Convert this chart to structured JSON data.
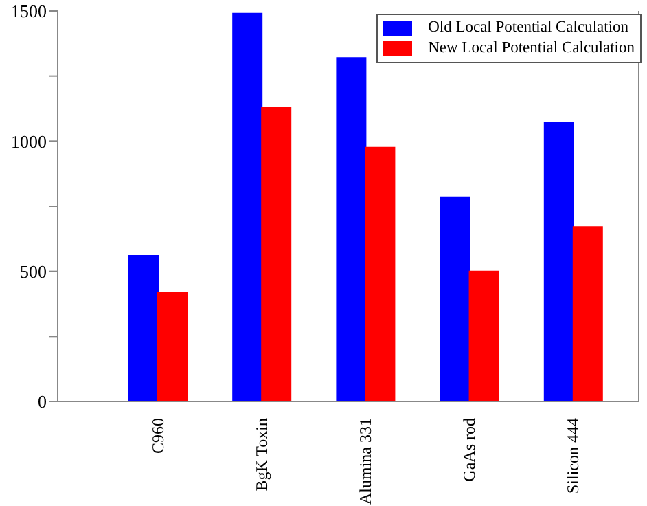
{
  "chart_data": {
    "type": "bar",
    "categories": [
      "C960",
      "BgK Toxin",
      "Alumina 331",
      "GaAs rod",
      "Silicon 444"
    ],
    "series": [
      {
        "name": "Old Local Potential Calculation",
        "color": "#0000ff",
        "values": [
          560,
          1490,
          1320,
          785,
          1070
        ]
      },
      {
        "name": "New Local Potential Calculation",
        "color": "#ff0000",
        "values": [
          420,
          1130,
          975,
          500,
          670
        ]
      }
    ],
    "ylim": [
      0,
      1500
    ],
    "yticks": [
      0,
      {
        "value": 250,
        "label": null
      },
      500,
      {
        "value": 750,
        "label": null
      },
      1000,
      {
        "value": 1250,
        "label": null
      },
      1500
    ],
    "grid": false,
    "legend": "top right"
  }
}
